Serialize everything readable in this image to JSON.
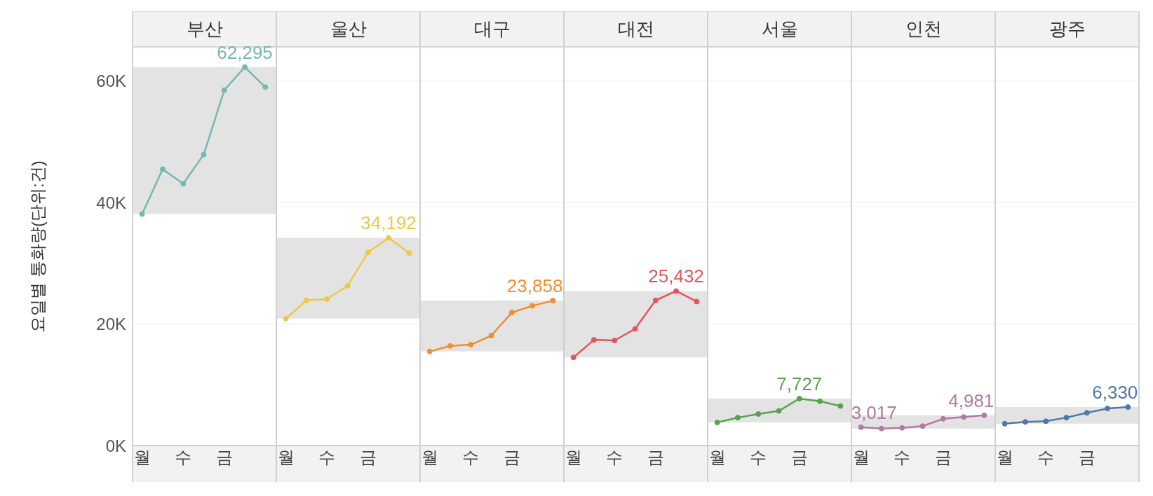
{
  "chart_data": [
    {
      "type": "line",
      "title": "부산",
      "ylabel": "요일별 통화량(단위:건)",
      "categories": [
        "월",
        null,
        "수",
        null,
        "금",
        null,
        null
      ],
      "ylim": [
        0,
        65500
      ],
      "yticks": [
        {
          "value": 0,
          "label": "0K"
        },
        {
          "value": 20000,
          "label": "20K"
        },
        {
          "value": 40000,
          "label": "40K"
        },
        {
          "value": 60000,
          "label": "60K"
        }
      ],
      "grid": "y",
      "marker": "circle",
      "bands": [
        {
          "axis": "y",
          "from": 38100,
          "to": 62295,
          "color": "#e3e3e3"
        }
      ],
      "series": [
        {
          "color": "#76b7b2",
          "values": [
            38100,
            45500,
            43100,
            47900,
            58500,
            62295,
            59000
          ],
          "value_labels": [
            null,
            null,
            null,
            null,
            null,
            "62,295",
            null
          ]
        }
      ]
    },
    {
      "type": "line",
      "title": "울산",
      "categories": [
        "월",
        null,
        "수",
        null,
        "금",
        null,
        null
      ],
      "ylim": [
        0,
        65500
      ],
      "yticks": [
        0,
        20000,
        40000,
        60000
      ],
      "tick_labels": "x",
      "grid": "y",
      "marker": "circle",
      "bands": [
        {
          "axis": "y",
          "from": 20900,
          "to": 34192,
          "color": "#e3e3e3"
        }
      ],
      "series": [
        {
          "color": "#edc948",
          "values": [
            20900,
            23900,
            24100,
            26300,
            31800,
            34192,
            31700
          ],
          "value_labels": [
            null,
            null,
            null,
            null,
            null,
            "34,192",
            null
          ]
        }
      ]
    },
    {
      "type": "line",
      "title": "대구",
      "categories": [
        "월",
        null,
        "수",
        null,
        "금",
        null,
        null
      ],
      "ylim": [
        0,
        65500
      ],
      "yticks": [
        0,
        20000,
        40000,
        60000
      ],
      "tick_labels": "x",
      "grid": "y",
      "marker": "circle",
      "bands": [
        {
          "axis": "y",
          "from": 15500,
          "to": 23858,
          "color": "#e3e3e3"
        }
      ],
      "series": [
        {
          "color": "#f28e2b",
          "values": [
            15500,
            16400,
            16600,
            18100,
            21900,
            23000,
            23858
          ],
          "value_labels": [
            null,
            null,
            null,
            null,
            null,
            null,
            "23,858"
          ]
        }
      ]
    },
    {
      "type": "line",
      "title": "대전",
      "categories": [
        "월",
        null,
        "수",
        null,
        "금",
        null,
        null
      ],
      "ylim": [
        0,
        65500
      ],
      "yticks": [
        0,
        20000,
        40000,
        60000
      ],
      "tick_labels": "x",
      "grid": "y",
      "marker": "circle",
      "bands": [
        {
          "axis": "y",
          "from": 14500,
          "to": 25432,
          "color": "#e3e3e3"
        }
      ],
      "series": [
        {
          "color": "#e15759",
          "values": [
            14500,
            17400,
            17300,
            19200,
            23900,
            25432,
            23700
          ],
          "value_labels": [
            null,
            null,
            null,
            null,
            null,
            "25,432",
            null
          ]
        }
      ]
    },
    {
      "type": "line",
      "title": "서울",
      "categories": [
        "월",
        null,
        "수",
        null,
        "금",
        null,
        null
      ],
      "ylim": [
        0,
        65500
      ],
      "yticks": [
        0,
        20000,
        40000,
        60000
      ],
      "tick_labels": "x",
      "grid": "y",
      "marker": "circle",
      "bands": [
        {
          "axis": "y",
          "from": 3800,
          "to": 7727,
          "color": "#e3e3e3"
        }
      ],
      "series": [
        {
          "color": "#59a14f",
          "values": [
            3800,
            4600,
            5200,
            5700,
            7727,
            7300,
            6500
          ],
          "value_labels": [
            null,
            null,
            null,
            null,
            "7,727",
            null,
            null
          ]
        }
      ]
    },
    {
      "type": "line",
      "title": "인천",
      "categories": [
        "월",
        null,
        "수",
        null,
        "금",
        null,
        null
      ],
      "ylim": [
        0,
        65500
      ],
      "yticks": [
        0,
        20000,
        40000,
        60000
      ],
      "tick_labels": "x",
      "grid": "y",
      "marker": "circle",
      "bands": [
        {
          "axis": "y",
          "from": 2800,
          "to": 4981,
          "color": "#e3e3e3"
        }
      ],
      "series": [
        {
          "color": "#b07aa1",
          "values": [
            3017,
            2800,
            2900,
            3200,
            4400,
            4700,
            4981
          ],
          "value_labels": [
            "3,017",
            null,
            null,
            null,
            null,
            null,
            "4,981"
          ]
        }
      ]
    },
    {
      "type": "line",
      "title": "광주",
      "categories": [
        "월",
        null,
        "수",
        null,
        "금",
        null,
        null
      ],
      "ylim": [
        0,
        65500
      ],
      "yticks": [
        0,
        20000,
        40000,
        60000
      ],
      "tick_labels": "x",
      "grid": "y",
      "marker": "circle",
      "bands": [
        {
          "axis": "y",
          "from": 3600,
          "to": 6330,
          "color": "#e3e3e3"
        }
      ],
      "series": [
        {
          "color": "#4e79a7",
          "values": [
            3600,
            3900,
            4000,
            4600,
            5400,
            6100,
            6330
          ],
          "value_labels": [
            null,
            null,
            null,
            null,
            null,
            null,
            "6,330"
          ]
        }
      ]
    }
  ]
}
